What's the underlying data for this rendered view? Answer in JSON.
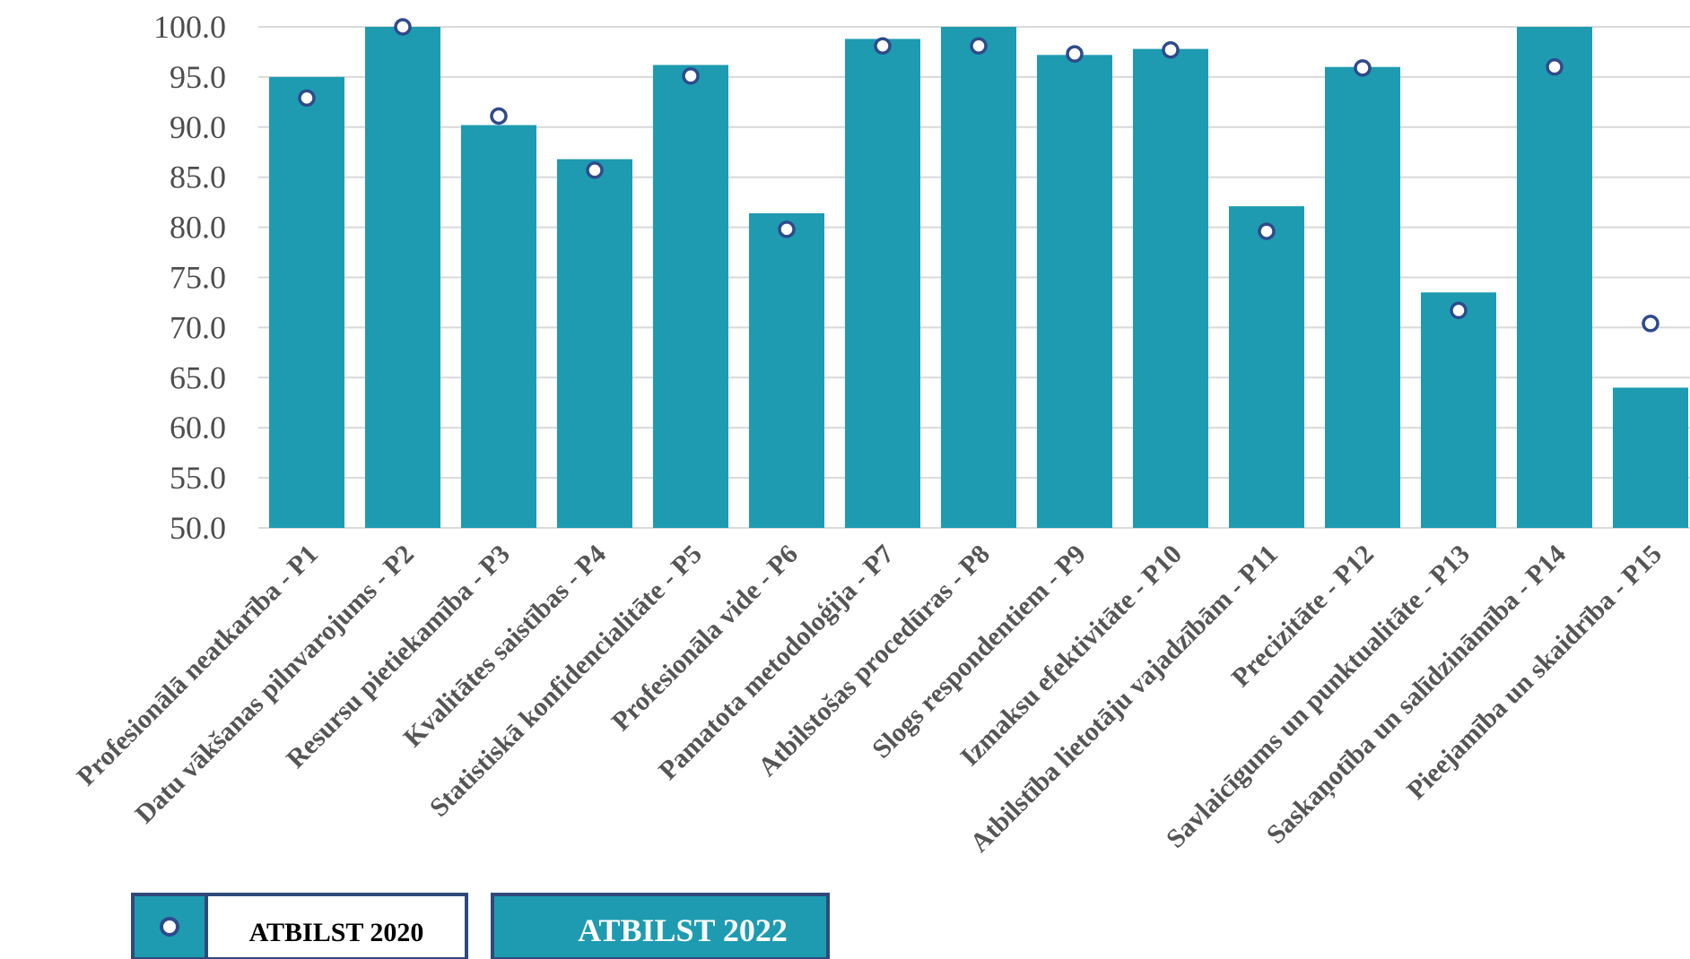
{
  "colors": {
    "bar": "#1e9bb1",
    "marker_fill": "#ffffff",
    "marker_stroke": "#2e4a8c",
    "grid": "#d9d9d9",
    "legend_border": "#2e4a7a"
  },
  "legend": {
    "series_2020": "ATBILST 2020",
    "series_2022": "ATBILST 2022"
  },
  "chart_data": {
    "type": "bar",
    "ylim": [
      50,
      100
    ],
    "yticks": [
      "50.0",
      "55.0",
      "60.0",
      "65.0",
      "70.0",
      "75.0",
      "80.0",
      "85.0",
      "90.0",
      "95.0",
      "100.0"
    ],
    "grid": true,
    "legend_position": "bottom-left",
    "categories": [
      "Profesionālā neatkarība - P1",
      "Datu vākšanas pilnvarojums - P2",
      "Resursu pietiekamība - P3",
      "Kvalitātes saistības - P4",
      "Statistiskā konfidencialitāte - P5",
      "Profesionāla vide - P6",
      "Pamatota metodoloģija - P7",
      "Atbilstošas procedūras - P8",
      "Slogs respondentiem - P9",
      "Izmaksu efektivitāte - P10",
      "Atbilstība lietotāju vajadzībām - P11",
      "Precizitāte - P12",
      "Savlaicīgums un punktualitāte - P13",
      "Saskaņotība un salīdzināmība - P14",
      "Pieejamība un skaidrība - P15"
    ],
    "series": [
      {
        "name": "ATBILST 2022",
        "kind": "bar",
        "values": [
          95.0,
          100.0,
          90.2,
          86.8,
          96.2,
          81.4,
          98.8,
          100.0,
          97.2,
          97.8,
          82.1,
          96.0,
          73.5,
          100.0,
          64.0
        ]
      },
      {
        "name": "ATBILST 2020",
        "kind": "marker",
        "values": [
          92.9,
          100.0,
          91.1,
          85.7,
          95.1,
          79.8,
          98.1,
          98.1,
          97.3,
          97.7,
          79.6,
          95.9,
          71.7,
          96.0,
          70.4
        ]
      }
    ]
  }
}
